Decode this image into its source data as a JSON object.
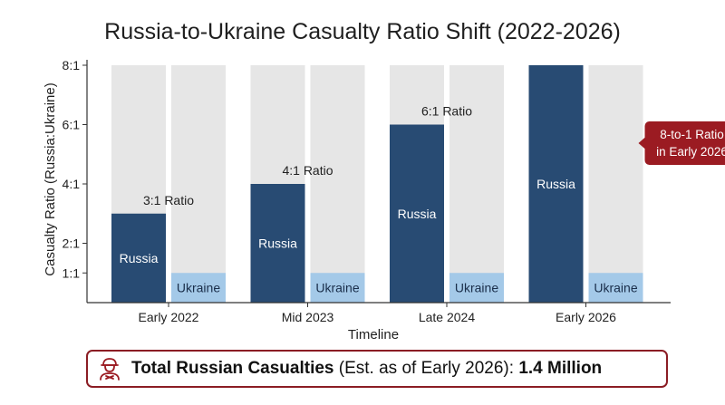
{
  "colors": {
    "russia": "#284b73",
    "ukraine": "#a4c9e8",
    "background_bar": "#e6e6e6",
    "callout": "#9b1b22",
    "footer_border": "#8b1d24"
  },
  "chart_data": {
    "type": "bar",
    "title": "Russia-to-Ukraine Casualty Ratio Shift (2022-2026)",
    "xlabel": "Timeline",
    "ylabel": "Casualty Ratio (Russia:Ukraine)",
    "ylim": [
      0,
      8
    ],
    "yticks": [
      {
        "value": 1,
        "label": "1:1"
      },
      {
        "value": 2,
        "label": "2:1"
      },
      {
        "value": 4,
        "label": "4:1"
      },
      {
        "value": 6,
        "label": "6:1"
      },
      {
        "value": 8,
        "label": "8:1"
      }
    ],
    "grid": false,
    "categories": [
      "Early 2022",
      "Mid 2023",
      "Late 2024",
      "Early 2026"
    ],
    "series": [
      {
        "name": "Russia",
        "values": [
          3,
          4,
          6,
          8
        ]
      },
      {
        "name": "Ukraine",
        "values": [
          1,
          1,
          1,
          1
        ]
      }
    ],
    "ratio_labels": [
      "3:1 Ratio",
      "4:1 Ratio",
      "6:1 Ratio",
      ""
    ],
    "callout": {
      "line1": "8-to-1 Ratio",
      "line2": "in Early 2026",
      "category": "Early 2026"
    }
  },
  "footer": {
    "icon": "soldier-casualty-icon",
    "bold_part": "Total Russian Casualties",
    "normal_part": " (Est. as of Early 2026): ",
    "value": "1.4 Million"
  }
}
